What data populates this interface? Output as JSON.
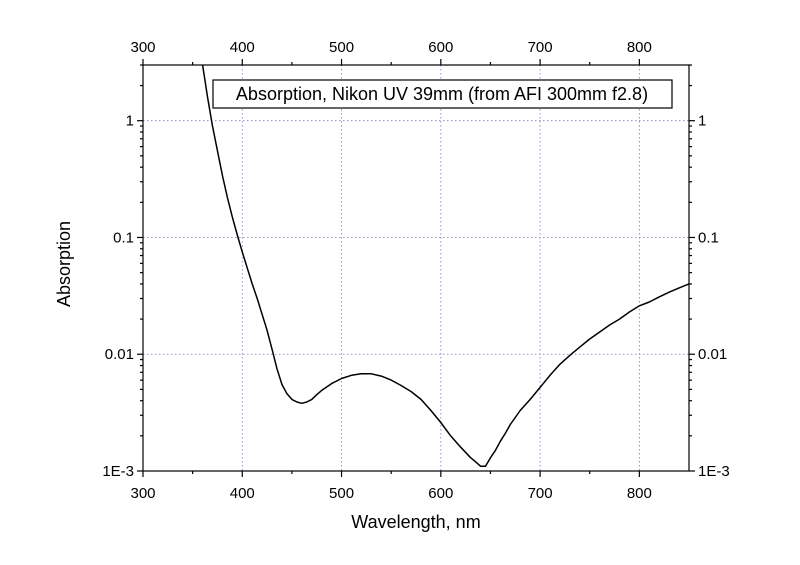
{
  "chart_data": {
    "type": "line",
    "title": "Absorption, Nikon UV 39mm (from AFI 300mm f2.8)",
    "xlabel": "Wavelength, nm",
    "ylabel": "Absorption",
    "xlim": [
      300,
      850
    ],
    "ylim": [
      0.001,
      3.0
    ],
    "yscale": "log",
    "grid": true,
    "x_ticks": [
      300,
      400,
      500,
      600,
      700,
      800
    ],
    "x_tick_labels": [
      "300",
      "400",
      "500",
      "600",
      "700",
      "800"
    ],
    "y_ticks": [
      0.001,
      0.01,
      0.1,
      1
    ],
    "y_tick_labels": [
      "1E-3",
      "0.01",
      "0.1",
      "1"
    ],
    "series": [
      {
        "color": "#000000",
        "x": [
          360,
          365,
          370,
          375,
          380,
          385,
          390,
          395,
          400,
          405,
          410,
          415,
          420,
          425,
          430,
          435,
          440,
          445,
          450,
          455,
          460,
          465,
          470,
          475,
          480,
          490,
          500,
          510,
          520,
          530,
          540,
          550,
          560,
          570,
          580,
          590,
          600,
          610,
          620,
          630,
          635,
          640,
          645,
          650,
          655,
          660,
          665,
          670,
          680,
          690,
          700,
          710,
          720,
          730,
          740,
          750,
          760,
          770,
          780,
          790,
          800,
          810,
          820,
          830,
          840,
          850
        ],
        "y": [
          3.0,
          1.6,
          0.9,
          0.55,
          0.34,
          0.22,
          0.15,
          0.105,
          0.075,
          0.055,
          0.04,
          0.03,
          0.022,
          0.016,
          0.011,
          0.0075,
          0.0055,
          0.0046,
          0.0041,
          0.0039,
          0.0038,
          0.0039,
          0.0041,
          0.0045,
          0.0049,
          0.0056,
          0.0062,
          0.0066,
          0.0068,
          0.0068,
          0.0065,
          0.006,
          0.0054,
          0.0048,
          0.0041,
          0.0033,
          0.0026,
          0.002,
          0.0016,
          0.0013,
          0.0012,
          0.0011,
          0.0011,
          0.0013,
          0.0015,
          0.0018,
          0.0021,
          0.0025,
          0.0033,
          0.0041,
          0.0052,
          0.0066,
          0.0082,
          0.0098,
          0.0115,
          0.0135,
          0.0155,
          0.0178,
          0.02,
          0.023,
          0.026,
          0.028,
          0.031,
          0.034,
          0.037,
          0.04
        ]
      }
    ]
  }
}
